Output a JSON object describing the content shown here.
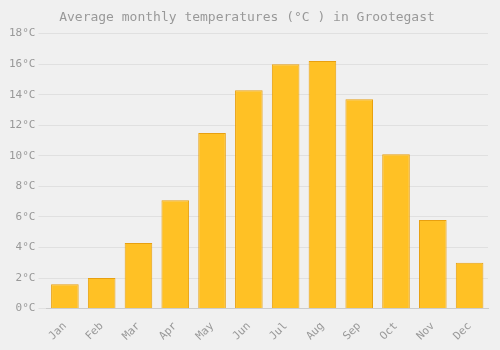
{
  "chart_data": {
    "type": "bar",
    "title": "Average monthly temperatures (°C ) in Grootegast",
    "categories": [
      "Jan",
      "Feb",
      "Mar",
      "Apr",
      "May",
      "Jun",
      "Jul",
      "Aug",
      "Sep",
      "Oct",
      "Nov",
      "Dec"
    ],
    "values": [
      1.6,
      2.0,
      4.3,
      7.1,
      11.5,
      14.3,
      16.0,
      16.2,
      13.7,
      10.1,
      5.8,
      3.0
    ],
    "color": "#FFC125",
    "ylim": [
      0,
      18
    ],
    "yticks": [
      {
        "value": 0,
        "label": "0°C"
      },
      {
        "value": 2,
        "label": "2°C"
      },
      {
        "value": 4,
        "label": "4°C"
      },
      {
        "value": 6,
        "label": "6°C"
      },
      {
        "value": 8,
        "label": "8°C"
      },
      {
        "value": 10,
        "label": "10°C"
      },
      {
        "value": 12,
        "label": "12°C"
      },
      {
        "value": 14,
        "label": "14°C"
      },
      {
        "value": 16,
        "label": "16°C"
      },
      {
        "value": 18,
        "label": "18°C"
      }
    ],
    "grid": true
  }
}
